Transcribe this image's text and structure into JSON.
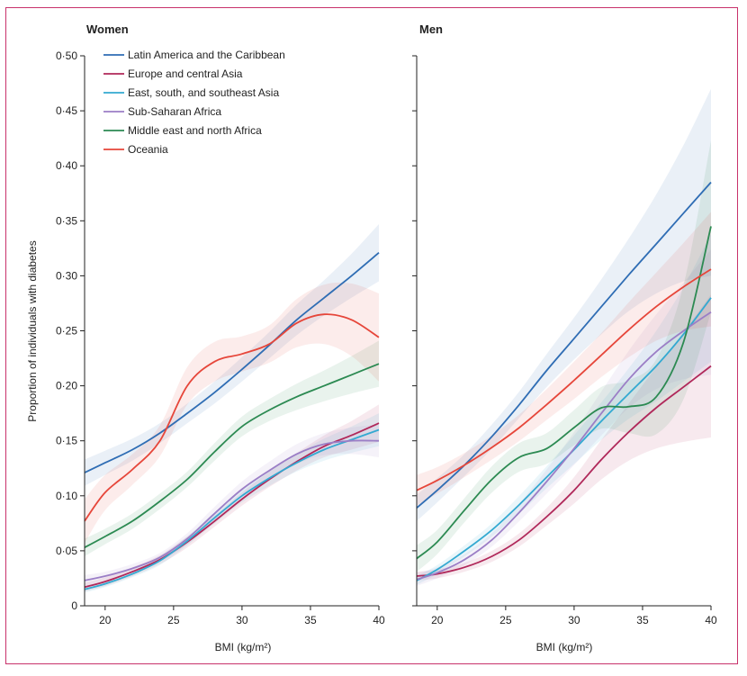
{
  "chart_data": [
    {
      "type": "line",
      "title": "Women",
      "xlabel": "BMI (kg/m²)",
      "ylabel": "Proportion of individuals with diabetes",
      "xlim": [
        18.5,
        40
      ],
      "ylim": [
        0,
        0.5
      ],
      "x_ticks": [
        20,
        25,
        30,
        35,
        40
      ],
      "x_tick_labels": [
        "20",
        "25",
        "30",
        "35",
        "40"
      ],
      "y_ticks": [
        0,
        0.05,
        0.1,
        0.15,
        0.2,
        0.25,
        0.3,
        0.35,
        0.4,
        0.45,
        0.5
      ],
      "y_tick_labels": [
        "0",
        "0·05",
        "0·10",
        "0·15",
        "0·20",
        "0·25",
        "0·30",
        "0·35",
        "0·40",
        "0·45",
        "0·50"
      ],
      "legend_position": "top-left",
      "x": [
        18.5,
        20,
        22,
        24,
        26,
        28,
        30,
        32,
        34,
        36,
        38,
        40
      ],
      "series": [
        {
          "name": "Latin America and the Caribbean",
          "color": "#2f6db4",
          "values": [
            0.121,
            0.13,
            0.142,
            0.157,
            0.175,
            0.194,
            0.215,
            0.237,
            0.26,
            0.28,
            0.3,
            0.321
          ],
          "ci": [
            0.012,
            0.011,
            0.01,
            0.009,
            0.009,
            0.01,
            0.011,
            0.012,
            0.014,
            0.016,
            0.02,
            0.026
          ]
        },
        {
          "name": "Europe and central Asia",
          "color": "#b0285a",
          "values": [
            0.017,
            0.022,
            0.031,
            0.042,
            0.058,
            0.077,
            0.097,
            0.115,
            0.131,
            0.145,
            0.155,
            0.166
          ],
          "ci": [
            0.004,
            0.004,
            0.004,
            0.004,
            0.005,
            0.005,
            0.006,
            0.007,
            0.008,
            0.01,
            0.013,
            0.017
          ]
        },
        {
          "name": "East, south, and southeast Asia",
          "color": "#33a9d1",
          "values": [
            0.015,
            0.02,
            0.029,
            0.041,
            0.059,
            0.08,
            0.1,
            0.116,
            0.13,
            0.142,
            0.151,
            0.16
          ],
          "ci": [
            0.003,
            0.003,
            0.003,
            0.004,
            0.004,
            0.005,
            0.006,
            0.007,
            0.008,
            0.01,
            0.012,
            0.015
          ]
        },
        {
          "name": "Sub-Saharan Africa",
          "color": "#9b7ec6",
          "values": [
            0.023,
            0.027,
            0.034,
            0.044,
            0.061,
            0.084,
            0.106,
            0.123,
            0.138,
            0.147,
            0.15,
            0.15
          ],
          "ci": [
            0.005,
            0.004,
            0.004,
            0.004,
            0.005,
            0.006,
            0.007,
            0.008,
            0.009,
            0.01,
            0.012,
            0.015
          ]
        },
        {
          "name": "Middle east and north Africa",
          "color": "#2c8a52",
          "values": [
            0.053,
            0.063,
            0.077,
            0.095,
            0.115,
            0.14,
            0.163,
            0.178,
            0.19,
            0.2,
            0.21,
            0.22
          ],
          "ci": [
            0.008,
            0.007,
            0.007,
            0.007,
            0.007,
            0.008,
            0.009,
            0.01,
            0.012,
            0.014,
            0.017,
            0.021
          ]
        },
        {
          "name": "Oceania",
          "color": "#e6463a",
          "values": [
            0.077,
            0.103,
            0.124,
            0.15,
            0.2,
            0.222,
            0.229,
            0.238,
            0.257,
            0.265,
            0.26,
            0.244
          ],
          "ci": [
            0.02,
            0.016,
            0.014,
            0.014,
            0.017,
            0.018,
            0.016,
            0.017,
            0.022,
            0.027,
            0.033,
            0.04
          ]
        }
      ]
    },
    {
      "type": "line",
      "title": "Men",
      "xlabel": "BMI (kg/m²)",
      "xlim": [
        18.5,
        40
      ],
      "ylim": [
        0,
        0.5
      ],
      "x_ticks": [
        20,
        25,
        30,
        35,
        40
      ],
      "x_tick_labels": [
        "20",
        "25",
        "30",
        "35",
        "40"
      ],
      "y_ticks": [
        0,
        0.05,
        0.1,
        0.15,
        0.2,
        0.25,
        0.3,
        0.35,
        0.4,
        0.45,
        0.5
      ],
      "x": [
        18.5,
        20,
        22,
        24,
        26,
        28,
        30,
        32,
        34,
        36,
        38,
        40
      ],
      "series": [
        {
          "name": "Latin America and the Caribbean",
          "color": "#2f6db4",
          "values": [
            0.089,
            0.105,
            0.128,
            0.154,
            0.183,
            0.214,
            0.243,
            0.272,
            0.301,
            0.329,
            0.357,
            0.385
          ],
          "ci": [
            0.012,
            0.011,
            0.01,
            0.011,
            0.012,
            0.015,
            0.019,
            0.025,
            0.033,
            0.045,
            0.062,
            0.085
          ]
        },
        {
          "name": "Europe and central Asia",
          "color": "#b0285a",
          "values": [
            0.027,
            0.029,
            0.035,
            0.045,
            0.06,
            0.081,
            0.105,
            0.133,
            0.158,
            0.18,
            0.199,
            0.218
          ],
          "ci": [
            0.004,
            0.004,
            0.004,
            0.005,
            0.006,
            0.008,
            0.012,
            0.018,
            0.026,
            0.037,
            0.05,
            0.065
          ]
        },
        {
          "name": "East, south, and southeast Asia",
          "color": "#33a9d1",
          "values": [
            0.023,
            0.033,
            0.05,
            0.069,
            0.092,
            0.117,
            0.142,
            0.168,
            0.193,
            0.218,
            0.247,
            0.28
          ],
          "ci": [
            0.004,
            0.004,
            0.005,
            0.006,
            0.008,
            0.01,
            0.013,
            0.017,
            0.023,
            0.032,
            0.043,
            0.058
          ]
        },
        {
          "name": "Sub-Saharan Africa",
          "color": "#9b7ec6",
          "values": [
            0.024,
            0.03,
            0.042,
            0.06,
            0.085,
            0.113,
            0.143,
            0.175,
            0.206,
            0.231,
            0.25,
            0.267
          ],
          "ci": [
            0.006,
            0.005,
            0.005,
            0.006,
            0.008,
            0.011,
            0.015,
            0.02,
            0.026,
            0.034,
            0.044,
            0.057
          ]
        },
        {
          "name": "Middle east and north Africa",
          "color": "#2c8a52",
          "values": [
            0.043,
            0.058,
            0.087,
            0.115,
            0.135,
            0.143,
            0.162,
            0.18,
            0.181,
            0.19,
            0.24,
            0.345
          ],
          "ci": [
            0.012,
            0.011,
            0.011,
            0.012,
            0.013,
            0.014,
            0.016,
            0.019,
            0.024,
            0.034,
            0.052,
            0.078
          ]
        },
        {
          "name": "Oceania",
          "color": "#e6463a",
          "values": [
            0.105,
            0.114,
            0.128,
            0.144,
            0.162,
            0.183,
            0.205,
            0.228,
            0.251,
            0.272,
            0.29,
            0.306
          ],
          "ci": [
            0.014,
            0.012,
            0.011,
            0.011,
            0.012,
            0.014,
            0.017,
            0.02,
            0.025,
            0.031,
            0.04,
            0.052
          ]
        }
      ]
    }
  ]
}
